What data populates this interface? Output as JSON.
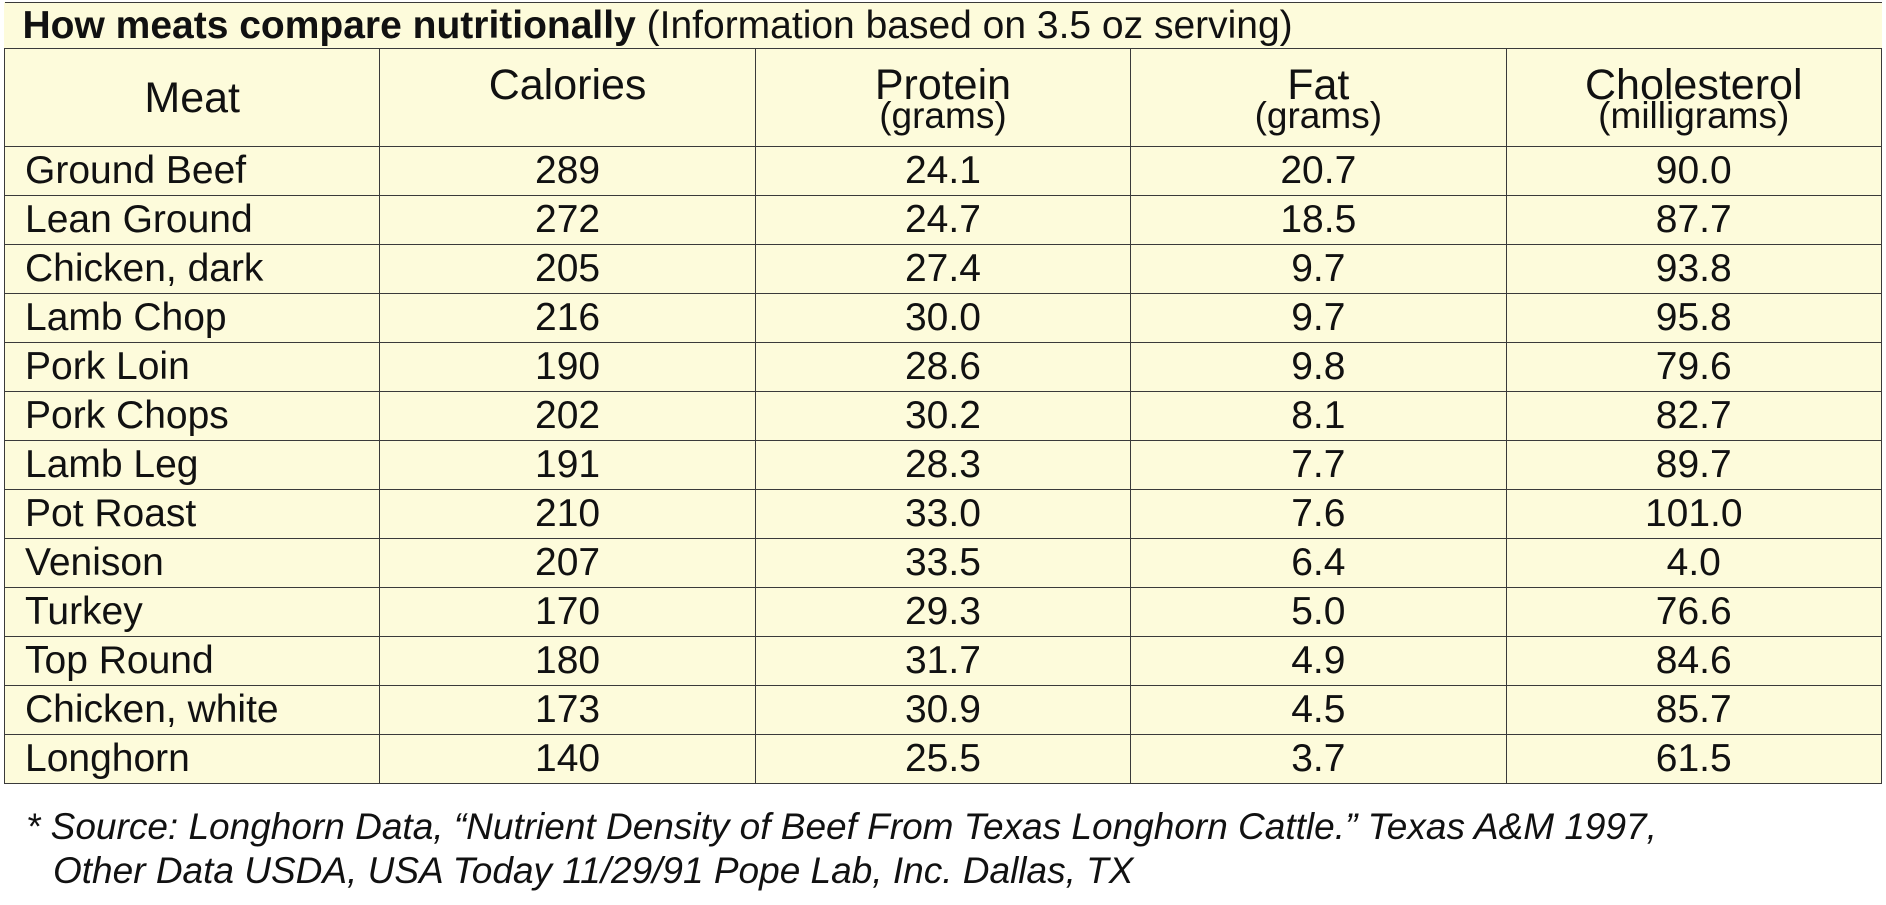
{
  "chart_data": {
    "type": "table",
    "title": "How meats compare nutritionally",
    "subtitle": "(Information based on 3.5 oz serving)",
    "columns": [
      {
        "label": "Meat",
        "unit": ""
      },
      {
        "label": "Calories",
        "unit": ""
      },
      {
        "label": "Protein",
        "unit": "(grams)"
      },
      {
        "label": "Fat",
        "unit": "(grams)"
      },
      {
        "label": "Cholesterol",
        "unit": "(milligrams)"
      }
    ],
    "rows": [
      {
        "meat": "Ground Beef",
        "calories": "289",
        "protein": "24.1",
        "fat": "20.7",
        "cholesterol": "90.0"
      },
      {
        "meat": "Lean Ground",
        "calories": "272",
        "protein": "24.7",
        "fat": "18.5",
        "cholesterol": "87.7"
      },
      {
        "meat": "Chicken, dark",
        "calories": "205",
        "protein": "27.4",
        "fat": "9.7",
        "cholesterol": "93.8"
      },
      {
        "meat": "Lamb Chop",
        "calories": "216",
        "protein": "30.0",
        "fat": "9.7",
        "cholesterol": "95.8"
      },
      {
        "meat": "Pork Loin",
        "calories": "190",
        "protein": "28.6",
        "fat": "9.8",
        "cholesterol": "79.6"
      },
      {
        "meat": "Pork Chops",
        "calories": "202",
        "protein": "30.2",
        "fat": "8.1",
        "cholesterol": "82.7"
      },
      {
        "meat": "Lamb Leg",
        "calories": "191",
        "protein": "28.3",
        "fat": "7.7",
        "cholesterol": "89.7"
      },
      {
        "meat": "Pot Roast",
        "calories": "210",
        "protein": "33.0",
        "fat": "7.6",
        "cholesterol": "101.0"
      },
      {
        "meat": "Venison",
        "calories": "207",
        "protein": "33.5",
        "fat": "6.4",
        "cholesterol": "4.0"
      },
      {
        "meat": "Turkey",
        "calories": "170",
        "protein": "29.3",
        "fat": "5.0",
        "cholesterol": "76.6"
      },
      {
        "meat": "Top Round",
        "calories": "180",
        "protein": "31.7",
        "fat": "4.9",
        "cholesterol": "84.6"
      },
      {
        "meat": "Chicken, white",
        "calories": "173",
        "protein": "30.9",
        "fat": "4.5",
        "cholesterol": "85.7"
      },
      {
        "meat": "Longhorn",
        "calories": "140",
        "protein": "25.5",
        "fat": "3.7",
        "cholesterol": "61.5",
        "bold": true
      }
    ],
    "footnote": [
      "* Source: Longhorn Data, “Nutrient Density of Beef From Texas Longhorn Cattle.” Texas A&M 1997,",
      "Other Data USDA, USA Today 11/29/91 Pope Lab, Inc. Dallas, TX"
    ]
  },
  "colors": {
    "table_background": "#fdfbdb",
    "grid_lines": "#3a3a3a",
    "text": "#111111"
  }
}
